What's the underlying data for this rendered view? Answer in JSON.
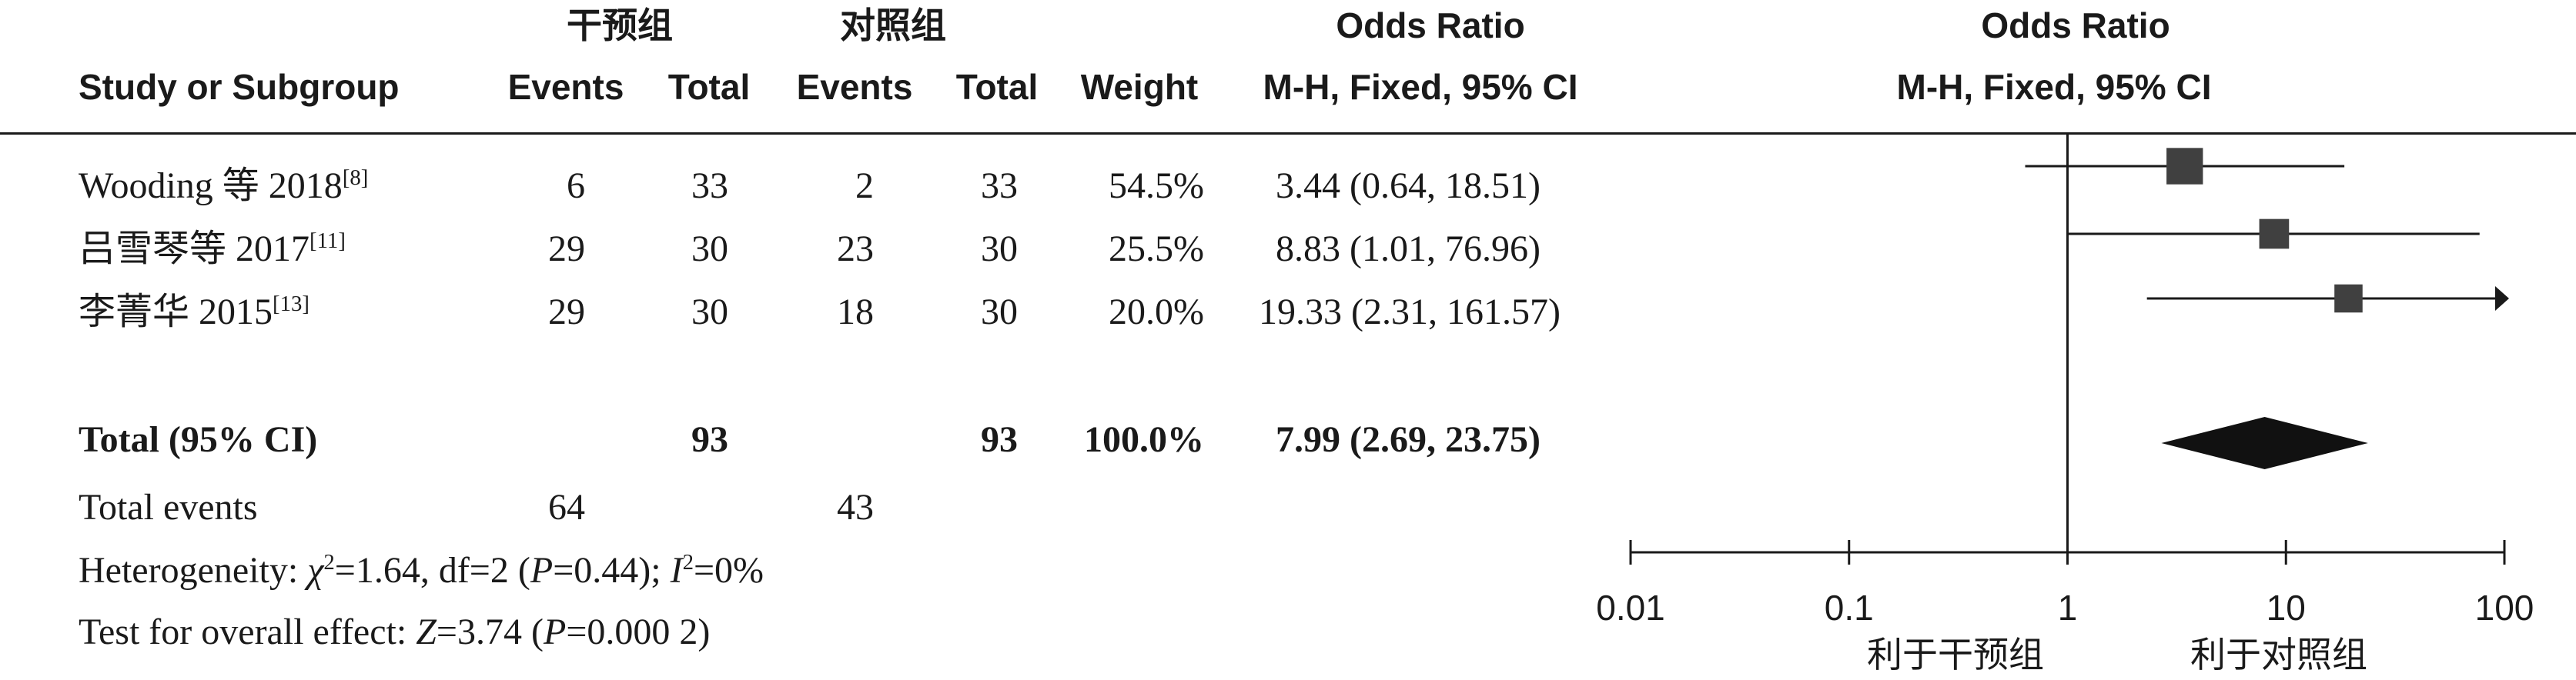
{
  "header": {
    "group_intervention": "干预组",
    "group_control": "对照组",
    "or_label_table": "Odds Ratio",
    "or_label_plot": "Odds Ratio",
    "col_study": "Study or Subgroup",
    "col_events_1": "Events",
    "col_total_1": "Total",
    "col_events_2": "Events",
    "col_total_2": "Total",
    "col_weight": "Weight",
    "col_method_table": "M-H, Fixed, 95% CI",
    "col_method_plot": "M-H, Fixed, 95% CI"
  },
  "studies": [
    {
      "name": "Wooding 等 2018",
      "ref": "[8]",
      "e1": "6",
      "t1": "33",
      "e2": "2",
      "t2": "33",
      "weight": "54.5%",
      "ci_text": "3.44 (0.64, 18.51)"
    },
    {
      "name": "吕雪琴等 2017",
      "ref": "[11]",
      "e1": "29",
      "t1": "30",
      "e2": "23",
      "t2": "30",
      "weight": "25.5%",
      "ci_text": "8.83 (1.01, 76.96)"
    },
    {
      "name": "李菁华 2015",
      "ref": "[13]",
      "e1": "29",
      "t1": "30",
      "e2": "18",
      "t2": "30",
      "weight": "20.0%",
      "ci_text": "19.33 (2.31, 161.57)"
    }
  ],
  "total": {
    "label": "Total (95% CI)",
    "t1": "93",
    "t2": "93",
    "weight": "100.0%",
    "ci_text": "7.99 (2.69, 23.75)"
  },
  "total_events": {
    "label": "Total events",
    "e1": "64",
    "e2": "43"
  },
  "heterogeneity": {
    "prefix": "Heterogeneity: ",
    "chi_sym": "χ",
    "chi_val": "=1.64, df=2 (",
    "p_sym": "P",
    "p_val": "=0.44); ",
    "i_sym": "I",
    "i_val": "=0%"
  },
  "overall_effect": {
    "prefix": "Test for overall effect: ",
    "z_sym": "Z",
    "z_val": "=3.74 (",
    "p_sym": "P",
    "p_val": "=0.000 2)"
  },
  "axis": {
    "favours_intervention": "利于干预组",
    "favours_control": "利于对照组"
  },
  "chart_data": {
    "type": "scatter",
    "scale": "log",
    "xlim": [
      0.01,
      100
    ],
    "x_ticks": [
      0.01,
      0.1,
      1,
      10,
      100
    ],
    "x_tick_labels": [
      "0.01",
      "0.1",
      "1",
      "10",
      "100"
    ],
    "reference_line": 1,
    "series": [
      {
        "points": [
          {
            "or": 3.44,
            "lower": 0.64,
            "upper": 18.51,
            "weight": 54.5
          },
          {
            "or": 8.83,
            "lower": 1.01,
            "upper": 76.96,
            "weight": 25.5
          },
          {
            "or": 19.33,
            "lower": 2.31,
            "upper": 161.57,
            "weight": 20.0
          }
        ]
      }
    ],
    "pooled": {
      "or": 7.99,
      "lower": 2.69,
      "upper": 23.75
    },
    "marker_color": "#404040",
    "diamond_color": "#111111"
  }
}
